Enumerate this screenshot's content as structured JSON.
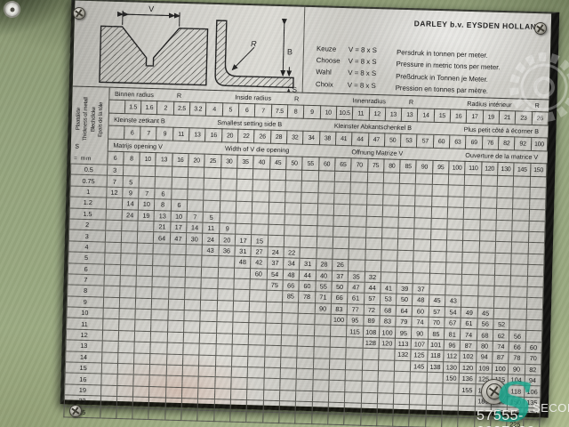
{
  "watermark": {
    "brand": "SECOND",
    "listing_number": "57555-2087102"
  },
  "plate": {
    "maker": "DARLEY b.v. EYSDEN HOLLAND",
    "diagram": {
      "v": "V",
      "r": "R",
      "b": "B",
      "s": "S"
    },
    "choice": {
      "rows": [
        {
          "lang": "Keuze",
          "formula": "V = 8 x S"
        },
        {
          "lang": "Choose",
          "formula": "V = 8 x S"
        },
        {
          "lang": "Wahl",
          "formula": "V = 8 x S"
        },
        {
          "lang": "Choix",
          "formula": "V = 8 x S"
        }
      ]
    },
    "pressure_lines": [
      "Persdruk in tonnen per meter.",
      "Pressure in metric tons per meter.",
      "Preßdruck in Tonnen je Meter.",
      "Pression en tonnes par mètre."
    ],
    "table": {
      "side_label": {
        "lines": [
          "Plaatdikte",
          "Thickness of metall",
          "Blechdicke",
          "Epais de la tôle"
        ],
        "symbol": "S",
        "unit": "= mm"
      },
      "radius_row": {
        "labels": [
          [
            "Binnen radius",
            "R"
          ],
          [
            "Inside radius",
            "R"
          ],
          [
            "Innenradius",
            "R"
          ],
          [
            "Radius intérieur",
            "R"
          ]
        ],
        "values": [
          "",
          "1.5",
          "1.6",
          "2",
          "2.5",
          "3.2",
          "4",
          "5",
          "6",
          "7",
          "7.5",
          "8",
          "9",
          "10",
          "10.5",
          "11",
          "12",
          "13",
          "13",
          "14",
          "15",
          "16",
          "17",
          "19",
          "21",
          "23",
          "26"
        ]
      },
      "setting_row": {
        "labels": [
          "Kleinste zetkant B",
          "Smallest setting side B",
          "Kleinster Abkantschenkel B",
          "Plus petit côté à écorner B"
        ],
        "values": [
          "",
          "6",
          "7",
          "9",
          "11",
          "13",
          "16",
          "20",
          "22",
          "26",
          "28",
          "32",
          "34",
          "38",
          "41",
          "44",
          "47",
          "50",
          "53",
          "57",
          "60",
          "63",
          "69",
          "76",
          "82",
          "92",
          "100"
        ]
      },
      "vee_row": {
        "labels": [
          "Matrijs opening V",
          "Width of V die opening",
          "Offnung Matrize V",
          "Ouverture de la matrice V"
        ],
        "values": [
          "6",
          "8",
          "10",
          "13",
          "16",
          "20",
          "25",
          "30",
          "35",
          "40",
          "45",
          "50",
          "55",
          "60",
          "65",
          "70",
          "75",
          "80",
          "85",
          "90",
          "95",
          "100",
          "110",
          "120",
          "130",
          "145",
          "150"
        ]
      },
      "body_rows": [
        {
          "s": "0.5",
          "start": 0,
          "v": [
            "3"
          ]
        },
        {
          "s": "0.75",
          "start": 0,
          "v": [
            "7",
            "5"
          ]
        },
        {
          "s": "1",
          "start": 0,
          "v": [
            "12",
            "9",
            "7",
            "6"
          ]
        },
        {
          "s": "1.2",
          "start": 1,
          "v": [
            "14",
            "10",
            "8",
            "6"
          ]
        },
        {
          "s": "1.5",
          "start": 1,
          "v": [
            "24",
            "19",
            "13",
            "10",
            "7",
            "5"
          ]
        },
        {
          "s": "2",
          "start": 3,
          "v": [
            "21",
            "17",
            "14",
            "11",
            "9"
          ]
        },
        {
          "s": "3",
          "start": 3,
          "v": [
            "64",
            "47",
            "30",
            "24",
            "20",
            "17",
            "15"
          ]
        },
        {
          "s": "4",
          "start": 6,
          "v": [
            "43",
            "36",
            "31",
            "27",
            "24",
            "22"
          ]
        },
        {
          "s": "5",
          "start": 8,
          "v": [
            "48",
            "42",
            "37",
            "34",
            "31",
            "28",
            "26"
          ]
        },
        {
          "s": "6",
          "start": 9,
          "v": [
            "60",
            "54",
            "48",
            "44",
            "40",
            "37",
            "35",
            "32"
          ]
        },
        {
          "s": "7",
          "start": 10,
          "v": [
            "75",
            "66",
            "60",
            "55",
            "50",
            "47",
            "44",
            "41",
            "39",
            "37"
          ]
        },
        {
          "s": "8",
          "start": 11,
          "v": [
            "85",
            "78",
            "71",
            "66",
            "61",
            "57",
            "53",
            "50",
            "48",
            "45",
            "43"
          ]
        },
        {
          "s": "9",
          "start": 13,
          "v": [
            "90",
            "83",
            "77",
            "72",
            "68",
            "64",
            "60",
            "57",
            "54",
            "49",
            "45"
          ]
        },
        {
          "s": "10",
          "start": 14,
          "v": [
            "100",
            "95",
            "89",
            "83",
            "79",
            "74",
            "70",
            "67",
            "61",
            "56",
            "52"
          ]
        },
        {
          "s": "11",
          "start": 15,
          "v": [
            "115",
            "108",
            "100",
            "95",
            "90",
            "85",
            "81",
            "74",
            "68",
            "62",
            "56"
          ]
        },
        {
          "s": "12",
          "start": 16,
          "v": [
            "128",
            "120",
            "113",
            "107",
            "101",
            "96",
            "87",
            "80",
            "74",
            "66",
            "60"
          ]
        },
        {
          "s": "13",
          "start": 18,
          "v": [
            "132",
            "125",
            "118",
            "112",
            "102",
            "94",
            "87",
            "78",
            "70"
          ]
        },
        {
          "s": "14",
          "start": 19,
          "v": [
            "145",
            "138",
            "130",
            "120",
            "109",
            "100",
            "90",
            "82"
          ]
        },
        {
          "s": "15",
          "start": 21,
          "v": [
            "150",
            "136",
            "125",
            "115",
            "104",
            "94"
          ]
        },
        {
          "s": "16",
          "start": 22,
          "v": [
            "155",
            "142",
            "132",
            "118",
            "106"
          ]
        },
        {
          "s": "19",
          "start": 23,
          "v": [
            "180",
            "166",
            "150",
            "135"
          ]
        },
        {
          "s": "22",
          "start": 24,
          "v": [
            "205",
            "185",
            "170"
          ]
        },
        {
          "s": "25",
          "start": 25,
          "v": [
            "225"
          ]
        }
      ]
    }
  }
}
